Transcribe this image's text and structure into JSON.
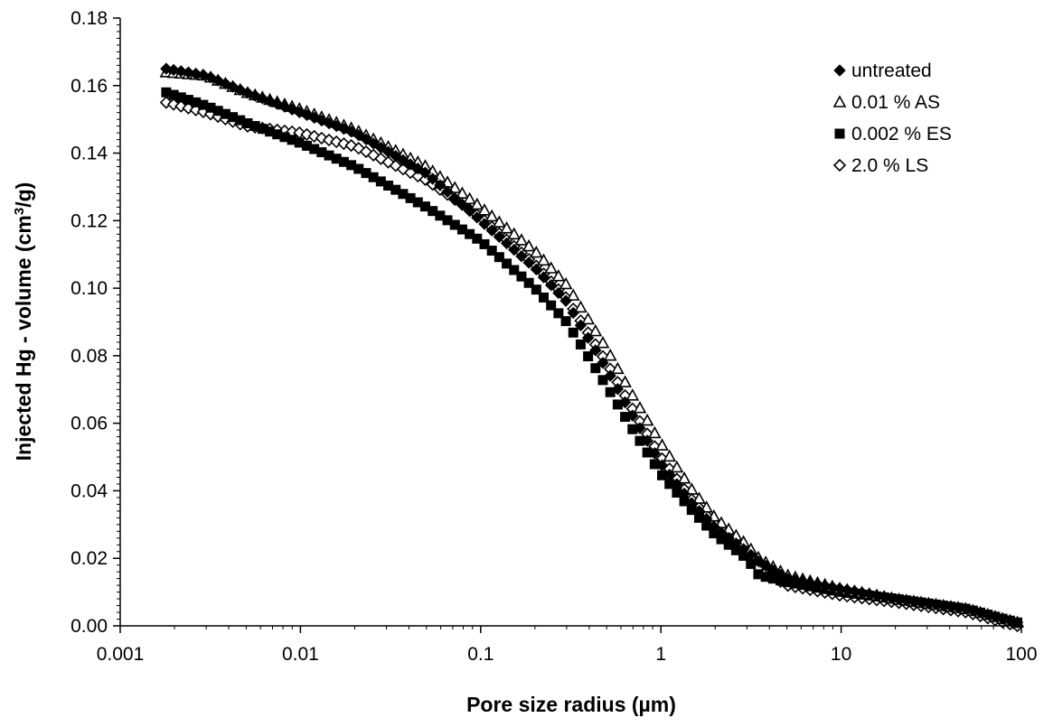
{
  "chart_data": {
    "type": "scatter",
    "xlabel": "Pore size radius (µm)",
    "ylabel_main": "Injected Hg - volume (cm",
    "ylabel_sup": "3",
    "ylabel_end": "/g)",
    "xscale": "log",
    "xlim": [
      0.001,
      100
    ],
    "ylim": [
      0,
      0.18
    ],
    "x_ticks": [
      0.001,
      0.01,
      0.1,
      1,
      10,
      100
    ],
    "x_tick_labels": [
      "0.001",
      "0.01",
      "0.1",
      "1",
      "10",
      "100"
    ],
    "y_ticks": [
      0,
      0.02,
      0.04,
      0.06,
      0.08,
      0.1,
      0.12,
      0.14,
      0.16,
      0.18
    ],
    "y_tick_labels": [
      "0.00",
      "0.02",
      "0.04",
      "0.06",
      "0.08",
      "0.10",
      "0.12",
      "0.14",
      "0.16",
      "0.18"
    ],
    "grid": false,
    "legend_position": "top-right",
    "series": [
      {
        "name": "untreated",
        "marker": "diamond-filled",
        "x": [
          0.0018,
          0.003,
          0.005,
          0.01,
          0.02,
          0.05,
          0.1,
          0.2,
          0.3,
          0.5,
          0.7,
          1.0,
          1.5,
          2.0,
          3.0,
          3.5,
          5,
          10,
          20,
          50,
          80,
          95
        ],
        "y": [
          0.165,
          0.163,
          0.158,
          0.152,
          0.146,
          0.134,
          0.12,
          0.106,
          0.096,
          0.076,
          0.062,
          0.048,
          0.036,
          0.029,
          0.022,
          0.019,
          0.014,
          0.011,
          0.008,
          0.005,
          0.002,
          0.001
        ]
      },
      {
        "name": "0.01 % AS",
        "marker": "triangle-open",
        "x": [
          0.0018,
          0.003,
          0.005,
          0.01,
          0.02,
          0.05,
          0.1,
          0.2,
          0.3,
          0.5,
          0.7,
          1.0,
          1.5,
          2.0,
          3.0,
          3.5,
          5,
          10,
          20,
          50,
          80,
          95
        ],
        "y": [
          0.164,
          0.163,
          0.158,
          0.153,
          0.147,
          0.136,
          0.124,
          0.111,
          0.101,
          0.082,
          0.068,
          0.054,
          0.04,
          0.032,
          0.024,
          0.02,
          0.015,
          0.011,
          0.008,
          0.005,
          0.002,
          0.001
        ]
      },
      {
        "name": "0.002 % ES",
        "marker": "square-filled",
        "x": [
          0.0018,
          0.003,
          0.005,
          0.01,
          0.02,
          0.05,
          0.1,
          0.2,
          0.3,
          0.5,
          0.7,
          1.0,
          1.5,
          2.0,
          3.0,
          3.5,
          5,
          10,
          20,
          50,
          80,
          95
        ],
        "y": [
          0.158,
          0.154,
          0.149,
          0.143,
          0.136,
          0.124,
          0.114,
          0.1,
          0.09,
          0.071,
          0.058,
          0.045,
          0.034,
          0.027,
          0.02,
          0.015,
          0.013,
          0.01,
          0.008,
          0.005,
          0.002,
          0.001
        ]
      },
      {
        "name": "2.0 % LS",
        "marker": "diamond-open",
        "x": [
          0.0018,
          0.003,
          0.005,
          0.01,
          0.02,
          0.05,
          0.1,
          0.2,
          0.3,
          0.5,
          0.7,
          1.0,
          1.5,
          2.0,
          3.0,
          3.5,
          5,
          10,
          20,
          50,
          80,
          95
        ],
        "y": [
          0.155,
          0.152,
          0.148,
          0.146,
          0.142,
          0.132,
          0.121,
          0.107,
          0.097,
          0.078,
          0.064,
          0.05,
          0.037,
          0.03,
          0.022,
          0.017,
          0.012,
          0.009,
          0.007,
          0.004,
          0.001,
          0.0
        ]
      }
    ]
  }
}
